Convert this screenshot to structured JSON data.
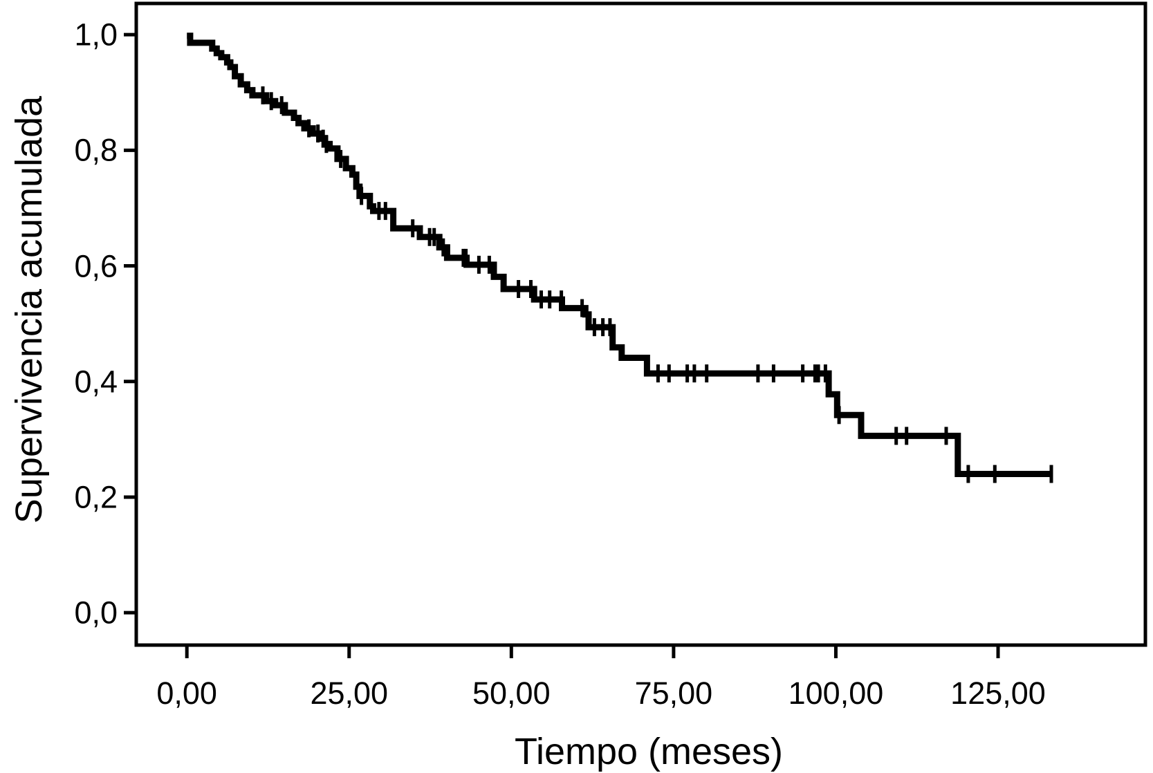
{
  "figure": {
    "background_color": "#ffffff",
    "foreground_color": "#000000"
  },
  "chart_data": {
    "type": "line",
    "variant": "kaplan_meier_step_function",
    "title": "",
    "xlabel": "Tiempo (meses)",
    "ylabel": "Supervivencia acumulada",
    "xlim": [
      -7.8,
      147.7
    ],
    "ylim": [
      -0.056,
      1.054
    ],
    "grid": false,
    "legend": false,
    "x_ticks": {
      "values": [
        0,
        25,
        50,
        75,
        100,
        125
      ],
      "labels": [
        "0,00",
        "25,00",
        "50,00",
        "75,00",
        "100,00",
        "125,00"
      ]
    },
    "y_ticks": {
      "values": [
        1.0,
        0.8,
        0.6,
        0.4,
        0.2,
        0.0
      ],
      "labels": [
        "1,0",
        "0,8",
        "0,6",
        "0,4",
        "0,2",
        "0,0"
      ]
    },
    "series": [
      {
        "name": "Supervivencia acumulada",
        "color": "#000000",
        "end_time": 133.3,
        "steps": [
          [
            0.0,
            0.998
          ],
          [
            0.5,
            0.986
          ],
          [
            3.9,
            0.976
          ],
          [
            4.6,
            0.968
          ],
          [
            5.3,
            0.961
          ],
          [
            6.2,
            0.952
          ],
          [
            6.7,
            0.944
          ],
          [
            7.4,
            0.928
          ],
          [
            8.3,
            0.914
          ],
          [
            9.3,
            0.904
          ],
          [
            10.1,
            0.895
          ],
          [
            12.2,
            0.885
          ],
          [
            13.6,
            0.878
          ],
          [
            15.1,
            0.865
          ],
          [
            16.5,
            0.856
          ],
          [
            17.2,
            0.847
          ],
          [
            18.1,
            0.838
          ],
          [
            19.4,
            0.829
          ],
          [
            20.4,
            0.82
          ],
          [
            21.3,
            0.811
          ],
          [
            22.0,
            0.803
          ],
          [
            23.2,
            0.785
          ],
          [
            24.5,
            0.769
          ],
          [
            25.5,
            0.758
          ],
          [
            26.1,
            0.737
          ],
          [
            26.6,
            0.721
          ],
          [
            28.2,
            0.703
          ],
          [
            28.7,
            0.695
          ],
          [
            31.8,
            0.665
          ],
          [
            35.9,
            0.65
          ],
          [
            38.9,
            0.632
          ],
          [
            40.1,
            0.614
          ],
          [
            43.1,
            0.602
          ],
          [
            47.3,
            0.581
          ],
          [
            48.8,
            0.56
          ],
          [
            53.5,
            0.542
          ],
          [
            57.8,
            0.527
          ],
          [
            61.4,
            0.516
          ],
          [
            61.9,
            0.494
          ],
          [
            65.6,
            0.459
          ],
          [
            67.0,
            0.441
          ],
          [
            70.9,
            0.414
          ],
          [
            98.9,
            0.378
          ],
          [
            100.2,
            0.342
          ],
          [
            103.9,
            0.306
          ],
          [
            118.8,
            0.24
          ]
        ],
        "censor_marks": [
          [
            11.7,
            0.895
          ],
          [
            13.0,
            0.885
          ],
          [
            14.6,
            0.878
          ],
          [
            18.8,
            0.838
          ],
          [
            20.2,
            0.829
          ],
          [
            21.0,
            0.82
          ],
          [
            21.5,
            0.811
          ],
          [
            23.7,
            0.785
          ],
          [
            26.9,
            0.721
          ],
          [
            29.6,
            0.695
          ],
          [
            30.6,
            0.695
          ],
          [
            34.8,
            0.665
          ],
          [
            37.4,
            0.65
          ],
          [
            38.1,
            0.65
          ],
          [
            39.5,
            0.632
          ],
          [
            42.6,
            0.614
          ],
          [
            43.0,
            0.614
          ],
          [
            45.0,
            0.602
          ],
          [
            46.6,
            0.602
          ],
          [
            51.1,
            0.56
          ],
          [
            53.0,
            0.56
          ],
          [
            54.6,
            0.542
          ],
          [
            55.9,
            0.542
          ],
          [
            57.7,
            0.542
          ],
          [
            60.9,
            0.527
          ],
          [
            62.8,
            0.494
          ],
          [
            64.1,
            0.494
          ],
          [
            65.2,
            0.494
          ],
          [
            72.6,
            0.414
          ],
          [
            74.3,
            0.414
          ],
          [
            77.1,
            0.414
          ],
          [
            78.2,
            0.414
          ],
          [
            80.1,
            0.414
          ],
          [
            88.0,
            0.414
          ],
          [
            90.4,
            0.414
          ],
          [
            94.9,
            0.414
          ],
          [
            96.8,
            0.414
          ],
          [
            97.3,
            0.414
          ],
          [
            98.4,
            0.414
          ],
          [
            100.5,
            0.342
          ],
          [
            109.3,
            0.306
          ],
          [
            110.9,
            0.306
          ],
          [
            117.0,
            0.306
          ],
          [
            120.4,
            0.24
          ],
          [
            124.5,
            0.24
          ],
          [
            133.2,
            0.24
          ]
        ]
      }
    ]
  }
}
